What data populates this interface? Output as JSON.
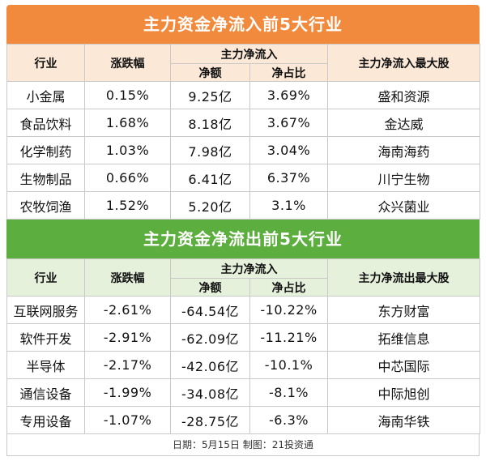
{
  "inflow": {
    "title": "主力资金净流入前5大行业",
    "headers": {
      "industry": "行业",
      "change": "涨跌幅",
      "main": "主力净流入",
      "amount": "净额",
      "ratio": "净占比",
      "stock": "主力净流入最大股"
    },
    "rows": [
      {
        "industry": "小金属",
        "change": "0.15%",
        "amount": "9.25亿",
        "ratio": "3.69%",
        "stock": "盛和资源"
      },
      {
        "industry": "食品饮料",
        "change": "1.68%",
        "amount": "8.18亿",
        "ratio": "3.67%",
        "stock": "金达威"
      },
      {
        "industry": "化学制药",
        "change": "1.03%",
        "amount": "7.98亿",
        "ratio": "3.04%",
        "stock": "海南海药"
      },
      {
        "industry": "生物制品",
        "change": "0.66%",
        "amount": "6.41亿",
        "ratio": "6.37%",
        "stock": "川宁生物"
      },
      {
        "industry": "农牧饲渔",
        "change": "1.52%",
        "amount": "5.20亿",
        "ratio": "3.1%",
        "stock": "众兴菌业"
      }
    ]
  },
  "outflow": {
    "title": "主力资金净流出前5大行业",
    "headers": {
      "industry": "行业",
      "change": "涨跌幅",
      "main": "主力净流入",
      "amount": "净额",
      "ratio": "净占比",
      "stock": "主力净流出最大股"
    },
    "rows": [
      {
        "industry": "互联网服务",
        "change": "-2.61%",
        "amount": "-64.54亿",
        "ratio": "-10.22%",
        "stock": "东方财富"
      },
      {
        "industry": "软件开发",
        "change": "-2.91%",
        "amount": "-62.09亿",
        "ratio": "-11.21%",
        "stock": "拓维信息"
      },
      {
        "industry": "半导体",
        "change": "-2.17%",
        "amount": "-42.06亿",
        "ratio": "-10.1%",
        "stock": "中芯国际"
      },
      {
        "industry": "通信设备",
        "change": "-1.99%",
        "amount": "-34.08亿",
        "ratio": "-8.1%",
        "stock": "中际旭创"
      },
      {
        "industry": "专用设备",
        "change": "-1.07%",
        "amount": "-28.75亿",
        "ratio": "-6.3%",
        "stock": "海南华铁"
      }
    ]
  },
  "footer": "日期：5月15日 制图：21投资通",
  "colors": {
    "orange": "#f18a3c",
    "green": "#5cae3f",
    "orange_header": "#fbe8d7",
    "green_header": "#e6f1dc"
  }
}
